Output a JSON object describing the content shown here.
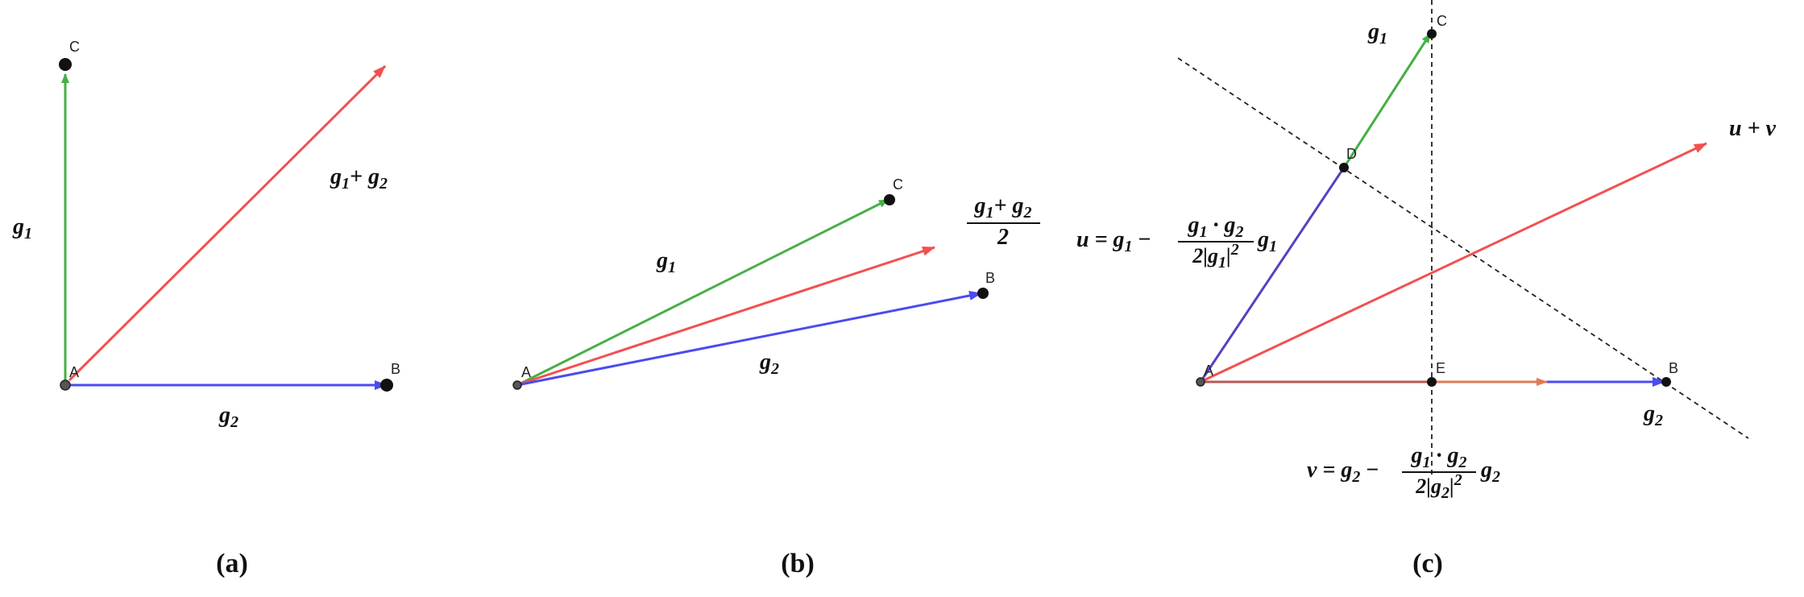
{
  "colors": {
    "g1": "#44b044",
    "g2": "#4b4bf0",
    "sum": "#f25050",
    "u": "#5a3fc0",
    "v_arrow": "#e07a55",
    "v_line": "#b85656",
    "dashed": "#222222"
  },
  "panels": [
    {
      "caption": "(a)",
      "points": {
        "A": "A",
        "B": "B",
        "C": "C"
      },
      "labels": {
        "g1": "g",
        "g1_sub": "1",
        "g2": "g",
        "g2_sub": "2",
        "sum_a": "g",
        "sum_a_sub": "1",
        "sum_plus": "+ ",
        "sum_b": "g",
        "sum_b_sub": "2"
      }
    },
    {
      "caption": "(b)",
      "points": {
        "A": "A",
        "B": "B",
        "C": "C"
      },
      "labels": {
        "g1": "g",
        "g1_sub": "1",
        "g2": "g",
        "g2_sub": "2",
        "num_a": "g",
        "num_a_sub": "1",
        "num_plus": "+ ",
        "num_b": "g",
        "num_b_sub": "2",
        "den": "2"
      }
    },
    {
      "caption": "(c)",
      "points": {
        "A": "A",
        "B": "B",
        "C": "C",
        "D": "D",
        "E": "E"
      },
      "labels": {
        "g1": "g",
        "g1_sub": "1",
        "g2": "g",
        "g2_sub": "2",
        "uv": "u + v",
        "u_lhs": "u = g",
        "u_lhs_sub": "1",
        "u_minus": " −",
        "u_num": "g",
        "u_num_sub1": "1",
        "u_dot": " · g",
        "u_num_sub2": "2",
        "u_den": "2|g",
        "u_den_sub": "1",
        "u_den_tail": "|",
        "u_den_sup": "2",
        "u_tail": "g",
        "u_tail_sub": "1",
        "v_lhs": "v = g",
        "v_lhs_sub": "2",
        "v_minus": " −",
        "v_num": "g",
        "v_num_sub1": "1",
        "v_dot": " · g",
        "v_num_sub2": "2",
        "v_den": "2|g",
        "v_den_sub": "2",
        "v_den_tail": "|",
        "v_den_sup": "2",
        "v_tail": "g",
        "v_tail_sub": "2"
      }
    }
  ]
}
